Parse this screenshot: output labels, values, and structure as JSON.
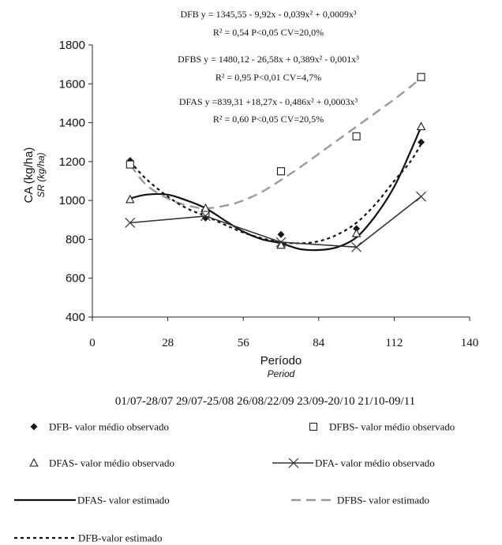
{
  "chart_data": {
    "type": "scatter",
    "equations": [
      {
        "id": "dfb",
        "line1": "DFB y = 1345,55 - 9,92x - 0,039x² + 0,0009x³",
        "line2": "R² = 0,54 P<0,05 CV=20,0%"
      },
      {
        "id": "dfbs",
        "line1": "DFBS y = 1480,12 - 26,58x + 0,389x² - 0,001x³",
        "line2": "R² = 0,95 P<0,01 CV=4,7%"
      },
      {
        "id": "dfas",
        "line1": "DFAS y =839,31 +18,27x - 0,486x² + 0,0003x³",
        "line2": "R² = 0,60 P<0,05 CV=20,5%"
      }
    ],
    "y_axis": {
      "label": "CA (kg/ha)",
      "sublabel": "SR (kg/ha)",
      "min": 400,
      "max": 1800,
      "step": 200
    },
    "x_axis": {
      "label": "Período",
      "sublabel": "Period",
      "min": 0,
      "max": 140,
      "ticks": [
        0,
        28,
        56,
        84,
        112,
        140
      ]
    },
    "periods_label": "01/07-28/07 29/07-25/08 26/08/22/09 23/09-20/10 21/10-09/11",
    "series": [
      {
        "id": "dfb_obs",
        "legend": "DFB- valor médio observado",
        "marker": "diamond",
        "color": "#1a1a1a",
        "x": [
          14,
          42,
          70,
          98,
          122
        ],
        "y": [
          1205,
          910,
          825,
          855,
          1300
        ]
      },
      {
        "id": "dfbs_obs",
        "legend": "DFBS- valor médio observado",
        "marker": "square",
        "color": "#1a1a1a",
        "x": [
          14,
          42,
          70,
          98,
          122
        ],
        "y": [
          1185,
          935,
          1150,
          1330,
          1635
        ]
      },
      {
        "id": "dfas_obs",
        "legend": "DFAS- valor médio observado",
        "marker": "triangle",
        "color": "#1a1a1a",
        "x": [
          14,
          42,
          70,
          98,
          122
        ],
        "y": [
          1005,
          960,
          770,
          830,
          1380
        ]
      },
      {
        "id": "dfa_obs",
        "legend": "DFA- valor médio observado",
        "marker": "x-line",
        "color": "#333333",
        "x": [
          14,
          42,
          70,
          98,
          122
        ],
        "y": [
          885,
          920,
          785,
          760,
          1020
        ]
      }
    ],
    "fits": [
      {
        "id": "dfas_fit",
        "legend": "DFAS- valor estimado",
        "style": "solid",
        "color": "#111111",
        "x": [
          14,
          20,
          28,
          35,
          42,
          50,
          56,
          63,
          70,
          77,
          84,
          91,
          98,
          105,
          112,
          118,
          122
        ],
        "y": [
          1010,
          1030,
          1030,
          1000,
          960,
          890,
          840,
          800,
          780,
          750,
          745,
          760,
          810,
          920,
          1070,
          1250,
          1380
        ]
      },
      {
        "id": "dfbs_fit",
        "legend": "DFBS- valor estimado",
        "style": "dashed",
        "color": "#9a9a9a",
        "x": [
          14,
          20,
          28,
          35,
          42,
          50,
          56,
          63,
          70,
          77,
          84,
          91,
          98,
          105,
          112,
          118,
          122
        ],
        "y": [
          1185,
          1080,
          1010,
          975,
          960,
          975,
          1000,
          1045,
          1105,
          1170,
          1240,
          1310,
          1380,
          1450,
          1520,
          1585,
          1630
        ]
      },
      {
        "id": "dfb_fit",
        "legend": "DFB-valor estimado",
        "style": "dotted",
        "color": "#111111",
        "x": [
          14,
          20,
          28,
          35,
          42,
          50,
          56,
          63,
          70,
          77,
          84,
          91,
          98,
          105,
          112,
          118,
          122
        ],
        "y": [
          1200,
          1110,
          1020,
          960,
          920,
          870,
          835,
          805,
          785,
          780,
          790,
          825,
          885,
          980,
          1100,
          1200,
          1290
        ]
      }
    ],
    "legend_order": [
      "dfb_obs",
      "dfbs_obs",
      "dfas_obs",
      "dfa_obs",
      "dfas_fit",
      "dfbs_fit",
      "dfb_fit"
    ],
    "grid": false
  }
}
